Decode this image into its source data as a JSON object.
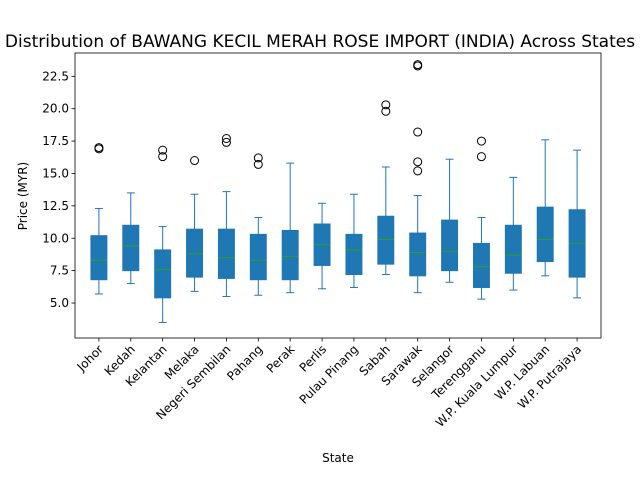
{
  "chart_data": {
    "type": "boxplot",
    "title": "Distribution of BAWANG KECIL MERAH ROSE IMPORT (INDIA) Across States",
    "xlabel": "State",
    "ylabel": "Price (MYR)",
    "ylim": [
      2.3,
      24.3
    ],
    "yticks": [
      5.0,
      7.5,
      10.0,
      12.5,
      15.0,
      17.5,
      20.0,
      22.5
    ],
    "ytick_labels": [
      "5.0",
      "7.5",
      "10.0",
      "12.5",
      "15.0",
      "17.5",
      "20.0",
      "22.5"
    ],
    "box_color": "#1f77b4",
    "median_color": "#2ca02c",
    "grid": false,
    "categories": [
      "Johor",
      "Kedah",
      "Kelantan",
      "Melaka",
      "Negeri Sembilan",
      "Pahang",
      "Perak",
      "Perlis",
      "Pulau Pinang",
      "Sabah",
      "Sarawak",
      "Selangor",
      "Terengganu",
      "W.P. Kuala Lumpur",
      "W.P. Labuan",
      "W.P. Putrajaya"
    ],
    "boxes": [
      {
        "whisker_low": 5.7,
        "q1": 6.8,
        "median": 8.3,
        "q3": 10.2,
        "whisker_high": 12.3,
        "outliers": [
          16.9,
          17.0
        ]
      },
      {
        "whisker_low": 6.5,
        "q1": 7.5,
        "median": 9.4,
        "q3": 11.0,
        "whisker_high": 13.5,
        "outliers": []
      },
      {
        "whisker_low": 3.5,
        "q1": 5.4,
        "median": 7.6,
        "q3": 9.1,
        "whisker_high": 10.9,
        "outliers": [
          16.3,
          16.8
        ]
      },
      {
        "whisker_low": 5.9,
        "q1": 7.0,
        "median": 8.8,
        "q3": 10.7,
        "whisker_high": 13.4,
        "outliers": [
          16.0
        ]
      },
      {
        "whisker_low": 5.5,
        "q1": 6.9,
        "median": 8.5,
        "q3": 10.7,
        "whisker_high": 13.6,
        "outliers": [
          17.4,
          17.7
        ]
      },
      {
        "whisker_low": 5.6,
        "q1": 6.8,
        "median": 8.3,
        "q3": 10.3,
        "whisker_high": 11.6,
        "outliers": [
          15.7,
          16.2
        ]
      },
      {
        "whisker_low": 5.8,
        "q1": 6.8,
        "median": 8.6,
        "q3": 10.6,
        "whisker_high": 15.8,
        "outliers": []
      },
      {
        "whisker_low": 6.1,
        "q1": 7.9,
        "median": 9.5,
        "q3": 11.1,
        "whisker_high": 12.7,
        "outliers": []
      },
      {
        "whisker_low": 6.2,
        "q1": 7.2,
        "median": 9.1,
        "q3": 10.3,
        "whisker_high": 13.4,
        "outliers": []
      },
      {
        "whisker_low": 7.2,
        "q1": 8.0,
        "median": 9.9,
        "q3": 11.7,
        "whisker_high": 15.5,
        "outliers": [
          19.8,
          20.3
        ]
      },
      {
        "whisker_low": 5.8,
        "q1": 7.1,
        "median": 8.9,
        "q3": 10.4,
        "whisker_high": 13.3,
        "outliers": [
          15.2,
          15.9,
          18.2,
          23.3,
          23.4
        ]
      },
      {
        "whisker_low": 6.6,
        "q1": 7.5,
        "median": 9.0,
        "q3": 11.4,
        "whisker_high": 16.1,
        "outliers": []
      },
      {
        "whisker_low": 5.3,
        "q1": 6.2,
        "median": 7.8,
        "q3": 9.6,
        "whisker_high": 11.6,
        "outliers": [
          16.3,
          17.5
        ]
      },
      {
        "whisker_low": 6.0,
        "q1": 7.3,
        "median": 8.7,
        "q3": 11.0,
        "whisker_high": 14.7,
        "outliers": []
      },
      {
        "whisker_low": 7.1,
        "q1": 8.2,
        "median": 9.9,
        "q3": 12.4,
        "whisker_high": 17.6,
        "outliers": []
      },
      {
        "whisker_low": 5.4,
        "q1": 7.0,
        "median": 9.6,
        "q3": 12.2,
        "whisker_high": 16.8,
        "outliers": []
      }
    ]
  }
}
